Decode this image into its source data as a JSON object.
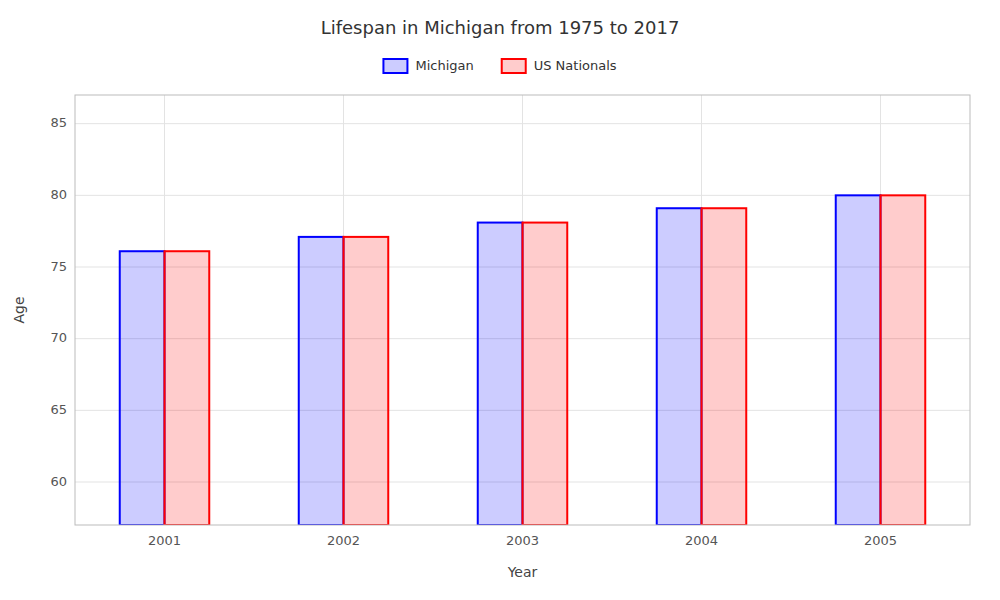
{
  "chart_data": {
    "type": "bar",
    "title": "Lifespan in Michigan from 1975 to 2017",
    "xlabel": "Year",
    "ylabel": "Age",
    "categories": [
      "2001",
      "2002",
      "2003",
      "2004",
      "2005"
    ],
    "series": [
      {
        "name": "Michigan",
        "color": "#0000ff",
        "values": [
          76.1,
          77.1,
          78.1,
          79.1,
          80.0
        ]
      },
      {
        "name": "US Nationals",
        "color": "#ff0000",
        "values": [
          76.1,
          77.1,
          78.1,
          79.1,
          80.0
        ]
      }
    ],
    "ylim": [
      57,
      87
    ],
    "yticks": [
      60,
      65,
      70,
      75,
      80,
      85
    ],
    "grid": true,
    "legend": "top"
  }
}
